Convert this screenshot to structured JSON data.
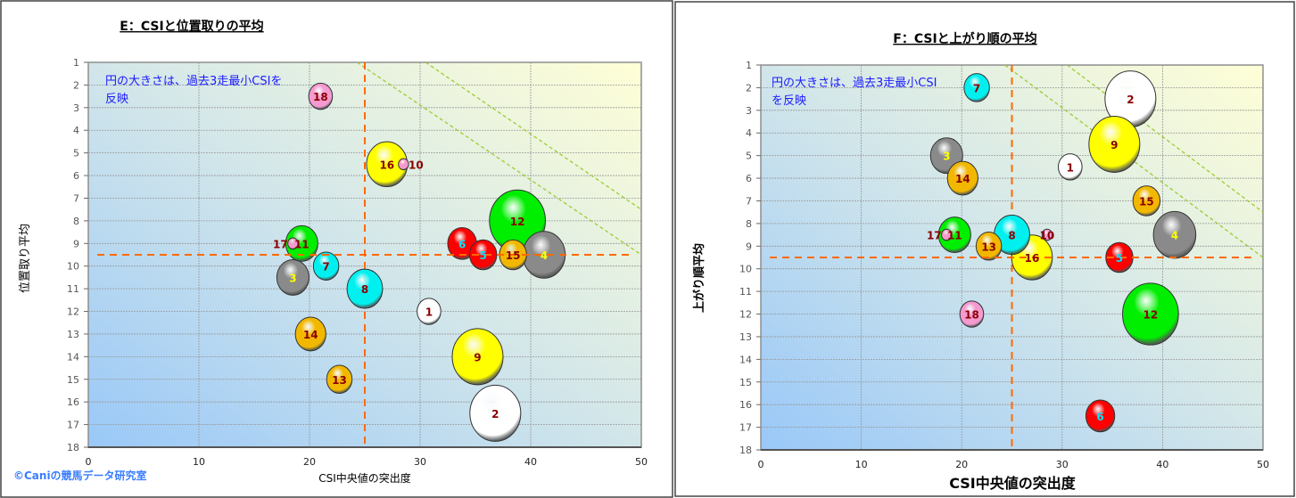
{
  "colors": {
    "white": "#ffffff",
    "grey": "#8a8a8a",
    "red": "#ff0000",
    "cyan": "#00f0f0",
    "yellow": "#ffff00",
    "green": "#00ee00",
    "orange": "#f2b800",
    "pink": "#f49ad0",
    "ref_line": "#ff6a00",
    "diag_line": "#9acd32",
    "label_dark": "#8b0000",
    "label_yellow": "#ffff00",
    "label_cyan": "#00e5ff"
  },
  "copyright": "©Caniの競馬データ研究室",
  "chart_data": [
    {
      "type": "scatter",
      "subtype": "bubble",
      "title": "E：CSIと位置取りの平均",
      "note_line1": "円の大きさは、過去3走最小CSIを",
      "note_line2": "反映",
      "xlabel": "CSI中央値の突出度",
      "ylabel": "位置取り平均",
      "xlim": [
        0,
        50
      ],
      "ylim": [
        1,
        18
      ],
      "y_reversed": true,
      "xticks": [
        0,
        10,
        20,
        30,
        40,
        50
      ],
      "yticks": [
        1,
        2,
        3,
        4,
        5,
        6,
        7,
        8,
        9,
        10,
        11,
        12,
        13,
        14,
        15,
        16,
        17,
        18
      ],
      "grid": true,
      "ref_lines": {
        "x": 25,
        "y": 9.5
      },
      "diag_lines": [
        [
          [
            24.3,
            1
          ],
          [
            50,
            9.5
          ]
        ],
        [
          [
            30.5,
            1
          ],
          [
            50,
            7.5
          ]
        ]
      ],
      "points": [
        {
          "label": "1",
          "x": 30.8,
          "y": 12.0,
          "size": 14,
          "color": "white",
          "label_color": "label_dark"
        },
        {
          "label": "2",
          "x": 36.8,
          "y": 16.5,
          "size": 30,
          "color": "white",
          "label_color": "label_dark"
        },
        {
          "label": "3",
          "x": 18.5,
          "y": 10.5,
          "size": 19,
          "color": "grey",
          "label_color": "label_yellow"
        },
        {
          "label": "4",
          "x": 41.2,
          "y": 9.5,
          "size": 25,
          "color": "grey",
          "label_color": "label_yellow"
        },
        {
          "label": "5",
          "x": 35.7,
          "y": 9.5,
          "size": 16,
          "color": "red",
          "label_color": "label_cyan"
        },
        {
          "label": "6",
          "x": 33.8,
          "y": 9.0,
          "size": 17,
          "color": "red",
          "label_color": "label_cyan"
        },
        {
          "label": "7",
          "x": 21.5,
          "y": 10.0,
          "size": 15,
          "color": "cyan",
          "label_color": "label_dark"
        },
        {
          "label": "8",
          "x": 25.0,
          "y": 11.0,
          "size": 21,
          "color": "cyan",
          "label_color": "label_dark"
        },
        {
          "label": "9",
          "x": 35.2,
          "y": 14.0,
          "size": 30,
          "color": "yellow",
          "label_color": "label_dark"
        },
        {
          "label": "10",
          "x": 28.5,
          "y": 5.5,
          "size": 6,
          "color": "pink",
          "label_color": "label_dark"
        },
        {
          "label": "11",
          "x": 19.3,
          "y": 9.0,
          "size": 19,
          "color": "green",
          "label_color": "label_dark"
        },
        {
          "label": "12",
          "x": 38.8,
          "y": 8.0,
          "size": 33,
          "color": "green",
          "label_color": "label_dark"
        },
        {
          "label": "13",
          "x": 22.7,
          "y": 15.0,
          "size": 15,
          "color": "orange",
          "label_color": "label_dark"
        },
        {
          "label": "14",
          "x": 20.1,
          "y": 13.0,
          "size": 18,
          "color": "orange",
          "label_color": "label_dark"
        },
        {
          "label": "15",
          "x": 38.4,
          "y": 9.5,
          "size": 16,
          "color": "orange",
          "label_color": "label_dark"
        },
        {
          "label": "16",
          "x": 27.0,
          "y": 5.5,
          "size": 24,
          "color": "yellow",
          "label_color": "label_dark"
        },
        {
          "label": "17",
          "x": 18.5,
          "y": 9.0,
          "size": 6,
          "color": "pink",
          "label_color": "label_dark"
        },
        {
          "label": "18",
          "x": 21.0,
          "y": 2.5,
          "size": 14,
          "color": "pink",
          "label_color": "label_dark"
        }
      ]
    },
    {
      "type": "scatter",
      "subtype": "bubble",
      "title": "F：CSIと上がり順の平均",
      "note_line1": "円の大きさは、過去3走最小CSI",
      "note_line2": "を反映",
      "xlabel": "CSI中央値の突出度",
      "ylabel": "上がり順平均",
      "xlim": [
        0,
        50
      ],
      "ylim": [
        1,
        18
      ],
      "y_reversed": true,
      "xticks": [
        0,
        10,
        20,
        30,
        40,
        50
      ],
      "yticks": [
        1,
        2,
        3,
        4,
        5,
        6,
        7,
        8,
        9,
        10,
        11,
        12,
        13,
        14,
        15,
        16,
        17,
        18
      ],
      "grid": true,
      "ref_lines": {
        "x": 25,
        "y": 9.5
      },
      "diag_lines": [
        [
          [
            24.3,
            1
          ],
          [
            50,
            9.5
          ]
        ],
        [
          [
            30.5,
            1
          ],
          [
            50,
            7.5
          ]
        ]
      ],
      "points": [
        {
          "label": "1",
          "x": 30.8,
          "y": 5.5,
          "size": 14,
          "color": "white",
          "label_color": "label_dark"
        },
        {
          "label": "2",
          "x": 36.8,
          "y": 2.5,
          "size": 30,
          "color": "white",
          "label_color": "label_dark"
        },
        {
          "label": "3",
          "x": 18.5,
          "y": 5.0,
          "size": 19,
          "color": "grey",
          "label_color": "label_yellow"
        },
        {
          "label": "4",
          "x": 41.2,
          "y": 8.5,
          "size": 25,
          "color": "grey",
          "label_color": "label_yellow"
        },
        {
          "label": "5",
          "x": 35.7,
          "y": 9.5,
          "size": 16,
          "color": "red",
          "label_color": "label_cyan"
        },
        {
          "label": "6",
          "x": 33.8,
          "y": 16.5,
          "size": 17,
          "color": "red",
          "label_color": "label_cyan"
        },
        {
          "label": "7",
          "x": 21.5,
          "y": 2.0,
          "size": 15,
          "color": "cyan",
          "label_color": "label_dark"
        },
        {
          "label": "8",
          "x": 25.0,
          "y": 8.5,
          "size": 21,
          "color": "cyan",
          "label_color": "label_dark"
        },
        {
          "label": "9",
          "x": 35.2,
          "y": 4.5,
          "size": 30,
          "color": "yellow",
          "label_color": "label_dark"
        },
        {
          "label": "10",
          "x": 28.5,
          "y": 8.5,
          "size": 6,
          "color": "pink",
          "label_color": "label_dark"
        },
        {
          "label": "11",
          "x": 19.3,
          "y": 8.5,
          "size": 19,
          "color": "green",
          "label_color": "label_dark"
        },
        {
          "label": "12",
          "x": 38.8,
          "y": 12.0,
          "size": 33,
          "color": "green",
          "label_color": "label_dark"
        },
        {
          "label": "13",
          "x": 22.7,
          "y": 9.0,
          "size": 15,
          "color": "orange",
          "label_color": "label_dark"
        },
        {
          "label": "14",
          "x": 20.1,
          "y": 6.0,
          "size": 18,
          "color": "orange",
          "label_color": "label_dark"
        },
        {
          "label": "15",
          "x": 38.4,
          "y": 7.0,
          "size": 16,
          "color": "orange",
          "label_color": "label_dark"
        },
        {
          "label": "16",
          "x": 27.0,
          "y": 9.5,
          "size": 24,
          "color": "yellow",
          "label_color": "label_dark"
        },
        {
          "label": "17",
          "x": 18.5,
          "y": 8.5,
          "size": 6,
          "color": "pink",
          "label_color": "label_dark"
        },
        {
          "label": "18",
          "x": 21.0,
          "y": 12.0,
          "size": 14,
          "color": "pink",
          "label_color": "label_dark"
        }
      ]
    }
  ]
}
